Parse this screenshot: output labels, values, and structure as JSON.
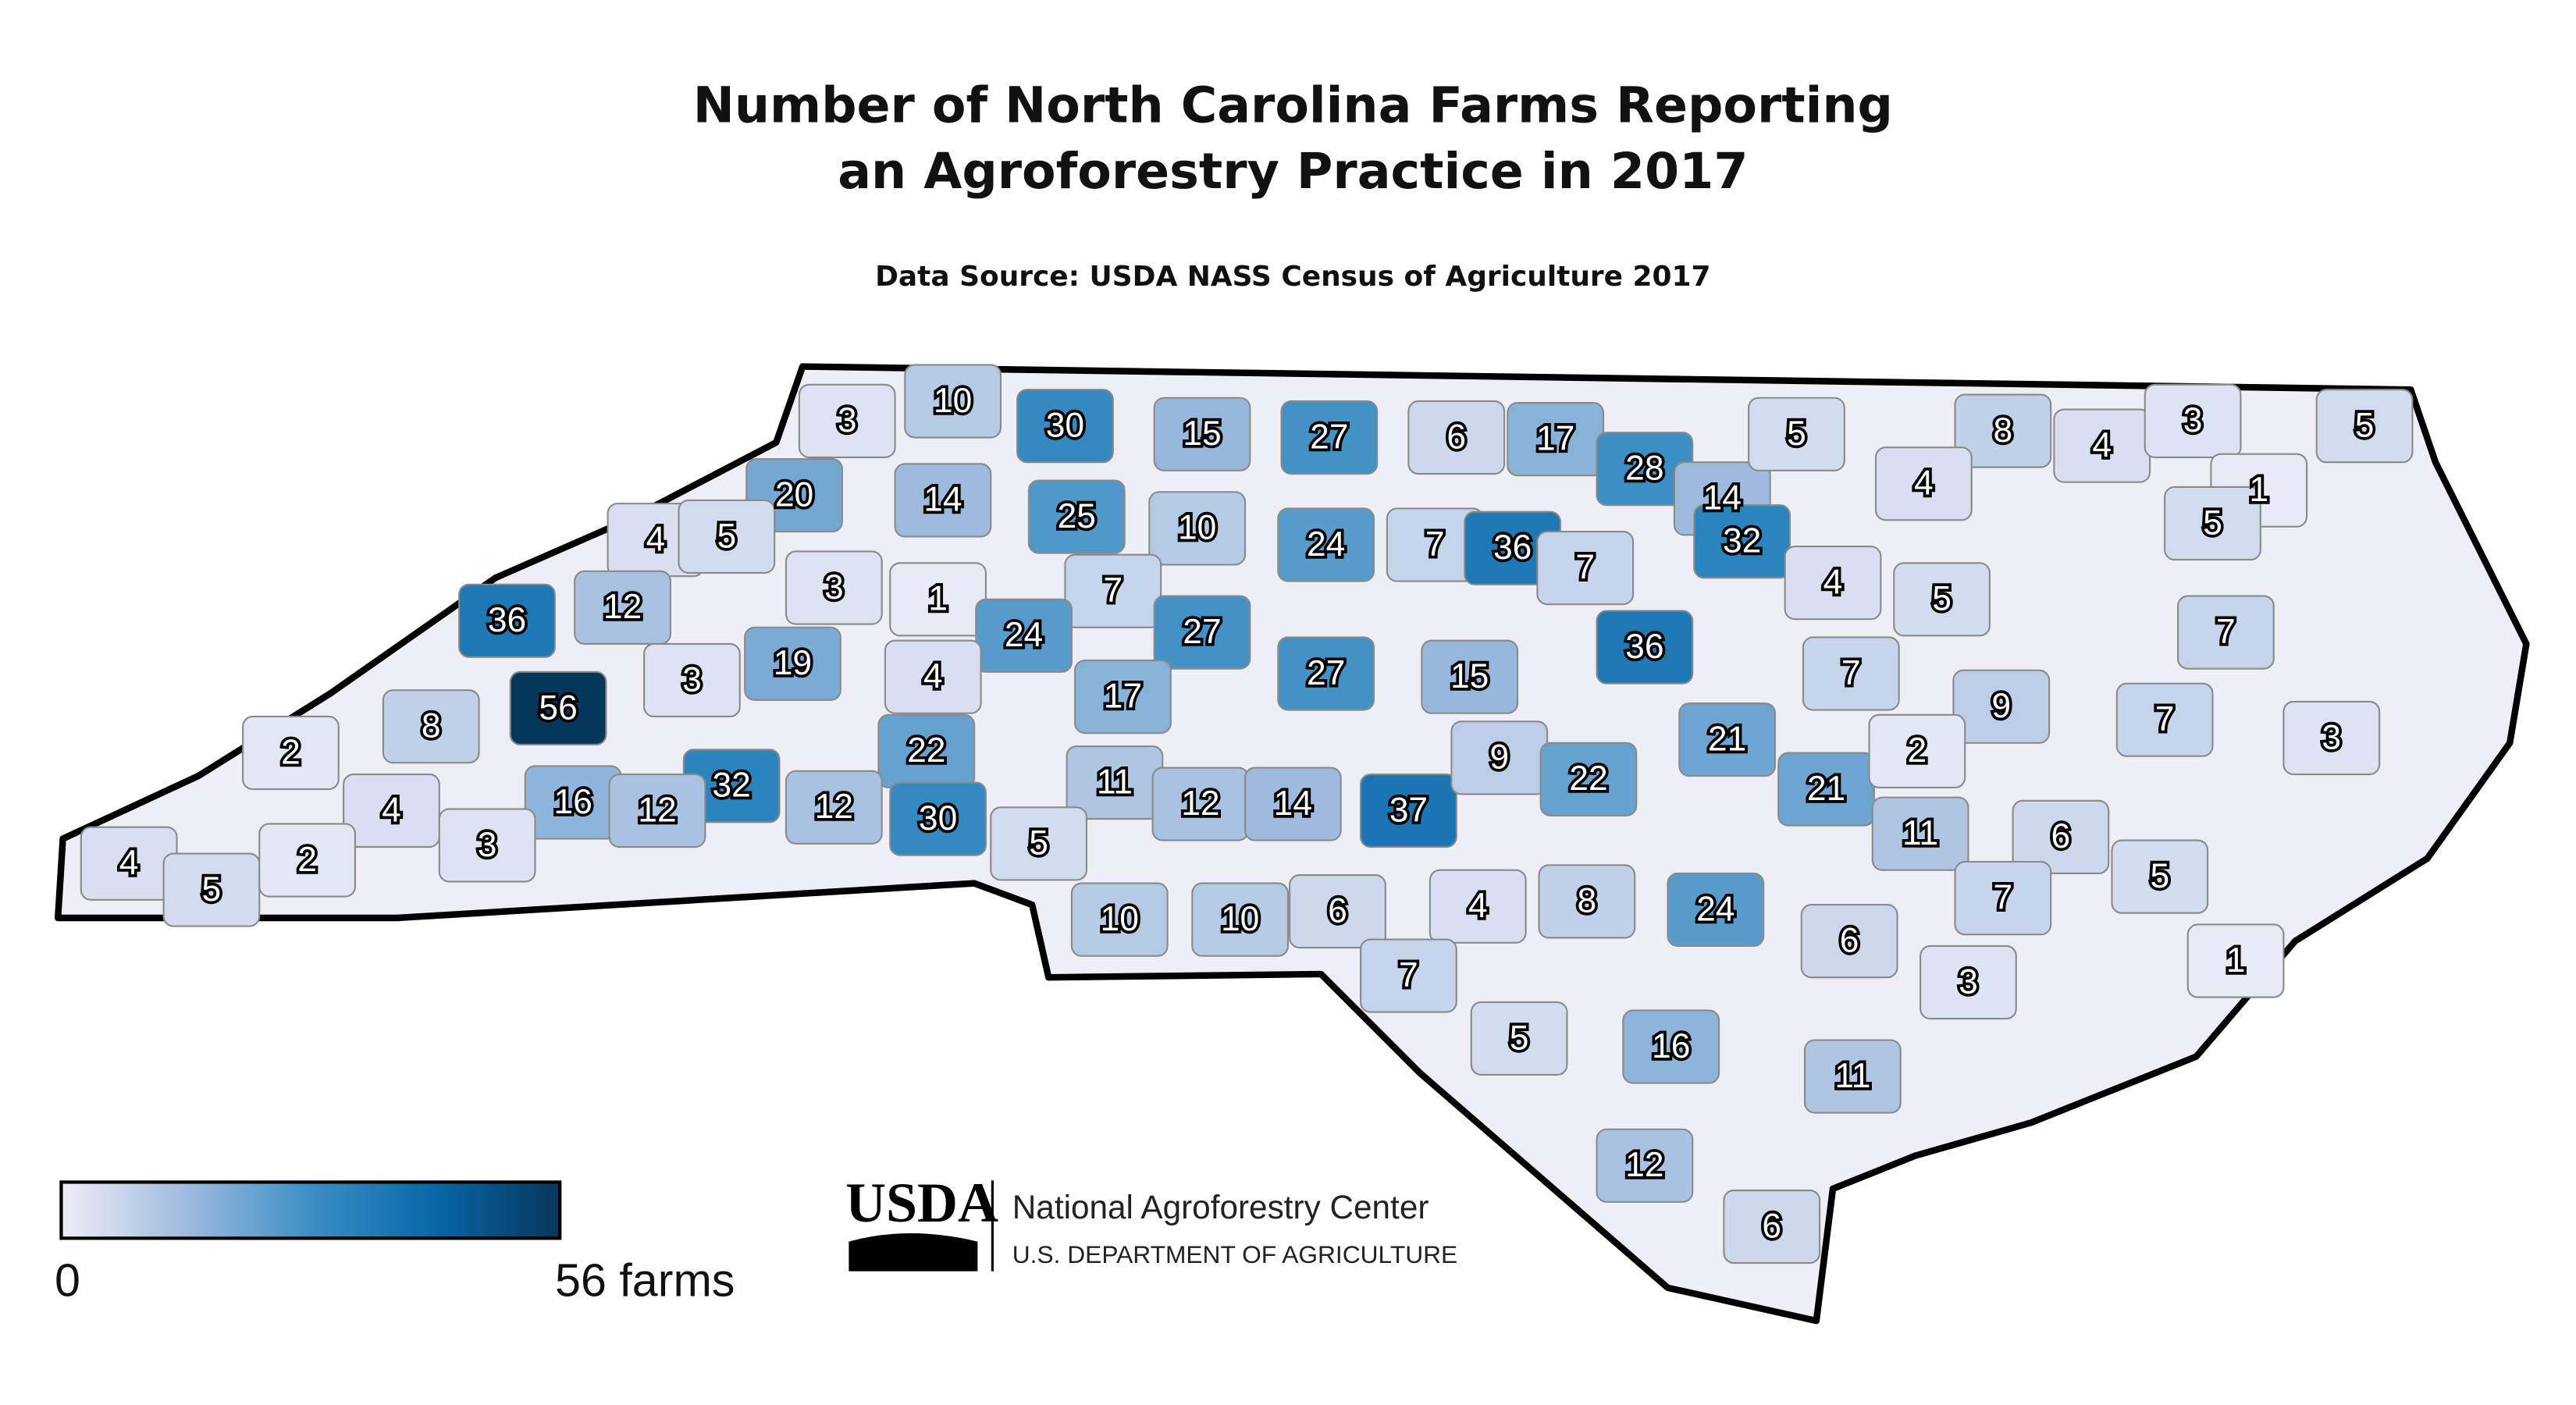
{
  "title": [
    "Number of North Carolina Farms Reporting",
    "an Agroforestry Practice in 2017"
  ],
  "subtitle": "Data Source: USDA NASS Census of Agriculture 2017",
  "counties": {
    "values": [
      3,
      10,
      30,
      15,
      27,
      6,
      17,
      28,
      14,
      5,
      8,
      4,
      3,
      5,
      20,
      14,
      25,
      10,
      24,
      7,
      36,
      7,
      32,
      4,
      1,
      5,
      4,
      5,
      12,
      36,
      3,
      1,
      7,
      27,
      4,
      5,
      7,
      36,
      19,
      3,
      24,
      17,
      27,
      15,
      7,
      9,
      56,
      8,
      2,
      4,
      4,
      22,
      21,
      21,
      2,
      7,
      3,
      16,
      32,
      12,
      12,
      30,
      11,
      12,
      14,
      37,
      9,
      22,
      11,
      6,
      5,
      4,
      5,
      2,
      3,
      5,
      10,
      10,
      6,
      4,
      8,
      24,
      6,
      7,
      1,
      3,
      7,
      5,
      16,
      11,
      12,
      6
    ]
  },
  "legend": {
    "min": 0,
    "max": {
      "value": 56,
      "label": "56 farms"
    },
    "colors": [
      "#eeeef7",
      "#9ebbde",
      "#3b8fc4",
      "#0767a8",
      "#07365b"
    ]
  },
  "credit": {
    "logo": "USDA",
    "name": "National Agroforestry Center",
    "department": "U.S. DEPARTMENT OF AGRICULTURE"
  }
}
